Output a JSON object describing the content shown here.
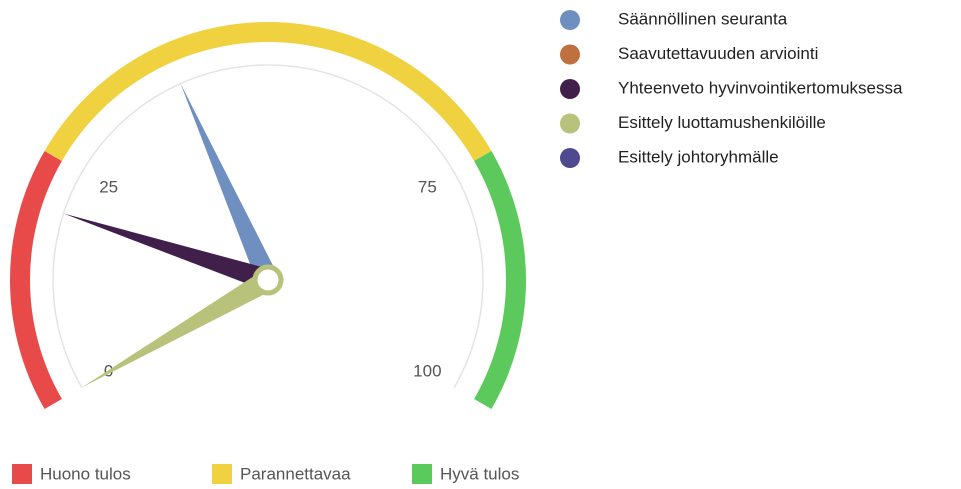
{
  "chart_data": {
    "type": "gauge",
    "min": 0,
    "max": 100,
    "ticks": [
      0,
      25,
      75,
      100
    ],
    "bands": [
      {
        "name": "Huono tulos",
        "from": 0,
        "to": 25,
        "color": "#e84a4a"
      },
      {
        "name": "Parannettavaa",
        "from": 25,
        "to": 75,
        "color": "#f0d140"
      },
      {
        "name": "Hyvä tulos",
        "from": 75,
        "to": 100,
        "color": "#5cc95c"
      }
    ],
    "series": [
      {
        "name": "Säännöllinen seuranta",
        "color": "#6f8fc0",
        "values": [
          40
        ]
      },
      {
        "name": "Saavutettavuuden arviointi",
        "color": "#c0703e",
        "values": [
          null
        ]
      },
      {
        "name": "Yhteenveto hyvinvointikertomuksessa",
        "color": "#40204a",
        "values": [
          20
        ]
      },
      {
        "name": "Esittely luottamushenkilöille",
        "color": "#b9c27a",
        "values": [
          0
        ]
      },
      {
        "name": "Esittely johtoryhmälle",
        "color": "#4f4a8f",
        "values": [
          null
        ]
      }
    ]
  }
}
